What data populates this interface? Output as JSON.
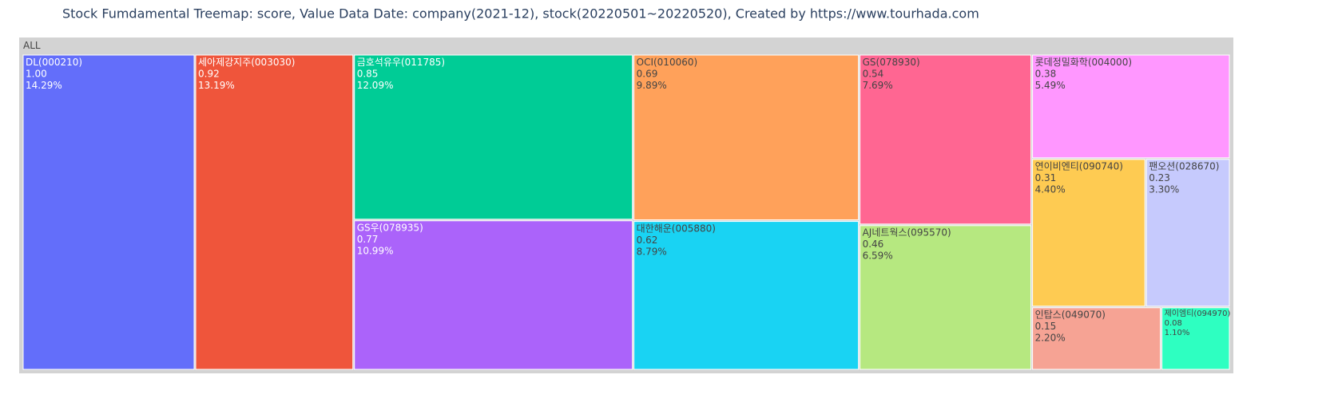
{
  "chart_data": {
    "type": "treemap",
    "title": "Stock Fumdamental Treemap: score, Value Data Date: company(2021-12), stock(20220501~20220520), Created by https://www.tourhada.com",
    "root_label": "ALL",
    "labels": [
      "DL(000210)",
      "세아제강지주(003030)",
      "금호석유우(011785)",
      "GS우(078935)",
      "OCI(010060)",
      "대한해운(005880)",
      "GS(078930)",
      "AJ네트웍스(095570)",
      "롯데정밀화학(004000)",
      "연이비엔티(090740)",
      "팬오션(028670)",
      "인탑스(049070)",
      "제이엠티(094970)"
    ],
    "values": [
      1.0,
      0.92,
      0.85,
      0.77,
      0.69,
      0.62,
      0.54,
      0.46,
      0.38,
      0.31,
      0.23,
      0.15,
      0.08
    ],
    "value_labels": [
      "1.00",
      "0.92",
      "0.85",
      "0.77",
      "0.69",
      "0.62",
      "0.54",
      "0.46",
      "0.38",
      "0.31",
      "0.23",
      "0.15",
      "0.08"
    ],
    "percents": [
      14.29,
      13.19,
      12.09,
      10.99,
      9.89,
      8.79,
      7.69,
      6.59,
      5.49,
      4.4,
      3.3,
      2.2,
      1.1
    ],
    "percent_labels": [
      "14.29%",
      "13.19%",
      "12.09%",
      "10.99%",
      "9.89%",
      "8.79%",
      "7.69%",
      "6.59%",
      "5.49%",
      "4.40%",
      "3.30%",
      "2.20%",
      "1.10%"
    ],
    "colors": [
      "#636efa",
      "#ef553b",
      "#00cc96",
      "#ab63fa",
      "#ffa15a",
      "#19d3f3",
      "#ff6692",
      "#b6e880",
      "#ff97ff",
      "#fecb52",
      "#c6cafd",
      "#f6a394",
      "#2effc1"
    ]
  }
}
